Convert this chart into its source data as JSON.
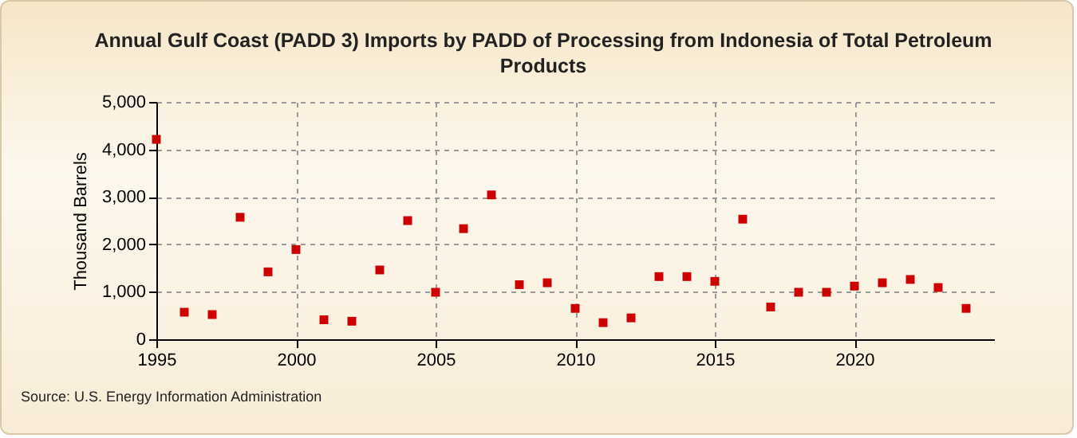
{
  "chart_data": {
    "type": "scatter",
    "title": "Annual Gulf Coast (PADD 3) Imports by PADD of Processing from Indonesia of Total Petroleum Products",
    "ylabel": "Thousand Barrels",
    "x": [
      1995,
      1996,
      1997,
      1998,
      1999,
      2000,
      2001,
      2002,
      2003,
      2004,
      2005,
      2006,
      2007,
      2008,
      2009,
      2010,
      2011,
      2012,
      2013,
      2014,
      2015,
      2016,
      2017,
      2018,
      2019,
      2020,
      2021,
      2022,
      2023,
      2024
    ],
    "series": [
      {
        "color": "#cc0000",
        "values": [
          4210,
          570,
          520,
          2570,
          1420,
          1890,
          410,
          380,
          1460,
          2500,
          990,
          2330,
          3040,
          1150,
          1190,
          650,
          350,
          450,
          1320,
          1320,
          1220,
          2530,
          680,
          990,
          990,
          1120,
          1190,
          1260,
          1090,
          650
        ]
      }
    ],
    "xlim": [
      1995,
      2025
    ],
    "xticks": [
      1995,
      2000,
      2005,
      2010,
      2015,
      2020
    ],
    "ylim": [
      0,
      5000
    ],
    "yticks": [
      0,
      {
        "value": 1000,
        "label": "1,000"
      },
      {
        "value": 2000,
        "label": "2,000"
      },
      {
        "value": 3000,
        "label": "3,000"
      },
      {
        "value": 4000,
        "label": "4,000"
      },
      {
        "value": 5000,
        "label": "5,000"
      }
    ],
    "grid": true,
    "marker": "square",
    "annotations": [
      "Source: U.S. Energy Information Administration"
    ]
  }
}
